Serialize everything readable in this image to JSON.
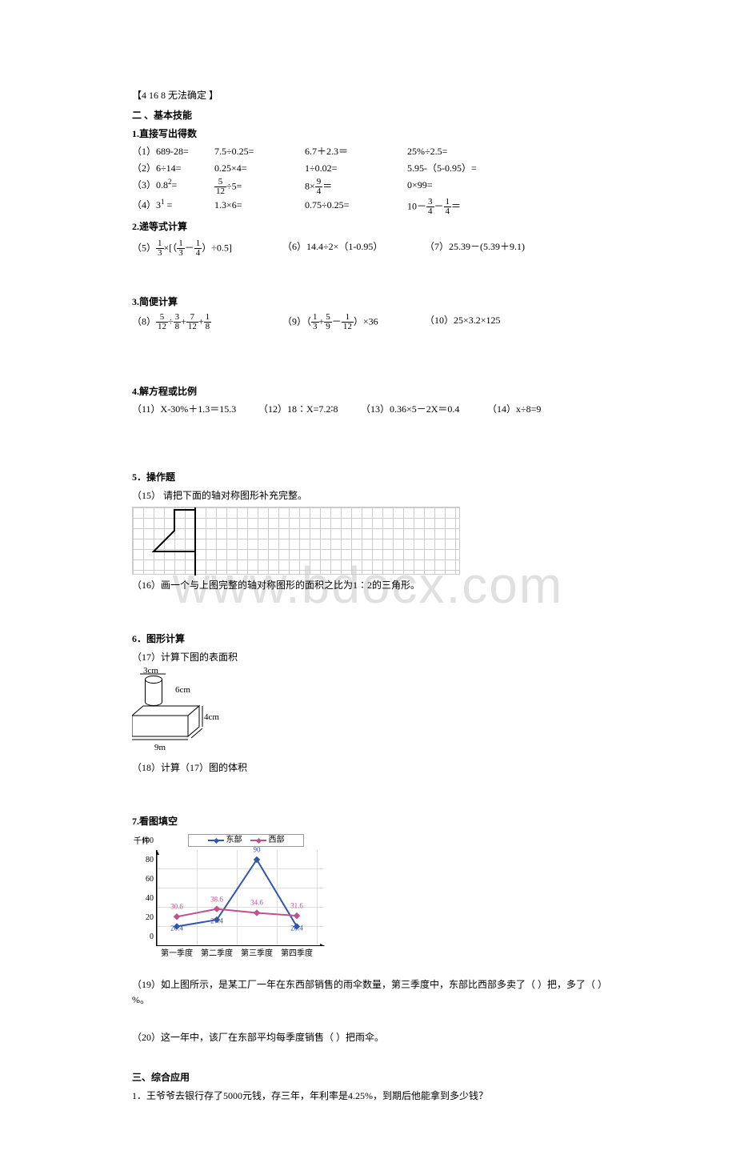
{
  "bracket": "【4    16    8    无法确定 】",
  "s2_title": "二 、基本技能",
  "q1_title": "1.直接写出得数",
  "q1": {
    "r1": [
      "（1）689-28=",
      "7.5÷0.25=",
      "6.7＋2.3＝",
      "25%÷2.5="
    ],
    "r2": [
      "（2）6÷14=",
      "0.25×4=",
      "1÷0.02=",
      "5.95-（5-0.95）="
    ],
    "r3a": "（3）0.8²=",
    "r3b_pre": "",
    "r3b_num": "5",
    "r3b_den": "12",
    "r3b_post": "÷5=",
    "r3c_pre": "8×",
    "r3c_num": "9",
    "r3c_den": "4",
    "r3c_post": "＝",
    "r3d": "0×99=",
    "r4a": "（4）3¹ =",
    "r4b": "1.3×6=",
    "r4c": "0.75÷0.25=",
    "r4d_pre": "10－",
    "r4d_n1": "3",
    "r4d_d1": "4",
    "r4d_mid": "－",
    "r4d_n2": "1",
    "r4d_d2": "4",
    "r4d_post": "＝"
  },
  "q2_title": "2.递等式计算",
  "q2": {
    "a_label": "（5）",
    "a_f1n": "1",
    "a_f1d": "3",
    "a_mid1": "×[（",
    "a_f2n": "1",
    "a_f2d": "3",
    "a_mid2": "－",
    "a_f3n": "1",
    "a_f3d": "4",
    "a_post": "）÷0.5]",
    "b": "（6）14.4÷2×（1-0.95）",
    "c": "（7）25.39－(5.39＋9.1)"
  },
  "q3_title": "3.简便计算",
  "q3": {
    "a_label": "（8）",
    "a_f1n": "5",
    "a_f1d": "12",
    "a_op1": "÷",
    "a_f2n": "3",
    "a_f2d": "8",
    "a_op2": "+",
    "a_f3n": "7",
    "a_f3d": "12",
    "a_op3": "+",
    "a_f4n": "1",
    "a_f4d": "8",
    "b_label": "（9）（",
    "b_f1n": "1",
    "b_f1d": "3",
    "b_op1": "+",
    "b_f2n": "5",
    "b_f2d": "9",
    "b_op2": "－",
    "b_f3n": "1",
    "b_f3d": "12",
    "b_post": "）×36",
    "c": "（10）25×3.2×125"
  },
  "q4_title": "4.解方程或比例",
  "q4": {
    "a": "（11）X-30%＋1.3＝15.3",
    "b": "（12）18∶X=7.2∶8",
    "c": "（13）0.36×5－2X＝0.4",
    "d": "（14）x÷8=9"
  },
  "q5_title": "5．操作题",
  "q5_15": "（15） 请把下面的轴对称图形补充完整。",
  "q5_16": "（16）画一个与上图完整的轴对称图形的面积之比为1∶2的三角形。",
  "q6_title": "6．图形计算",
  "q6_17": "（17）计算下图的表面积",
  "q6_dims": {
    "d1": "3cm",
    "d2": "6cm",
    "d3": "4cm",
    "d4": "9m"
  },
  "q6_18": "（18）计算（17）图的体积",
  "q7_title": "7.看图填空",
  "chart": {
    "ytitle": "千件",
    "legend": {
      "east": "东部",
      "west": "西部"
    },
    "east_color": "#3355aa",
    "west_color": "#c05090",
    "y_ticks": [
      "0",
      "20",
      "40",
      "60",
      "80",
      "100"
    ],
    "x_ticks": [
      "第一季度",
      "第二季度",
      "第三季度",
      "第四季度"
    ],
    "east_vals": [
      20.4,
      27.4,
      90,
      20.4
    ],
    "west_vals": [
      30.6,
      38.6,
      34.6,
      31.6
    ],
    "labels": {
      "e1": "20.4",
      "e2": "27.4",
      "e3": "90",
      "e4": "20.4",
      "w1": "30.6",
      "w2": "38.6",
      "w3": "34.6",
      "w4": "31.6"
    }
  },
  "q7_19": "（19）如上图所示，是某工厂一年在东西部销售的雨伞数量，第三季度中，东部比西部多卖了（    ）把，多了（    ）%。",
  "q7_20": "（20）这一年中，该厂在东部平均每季度销售（     ）把雨伞。",
  "s3_title": "三、综合应用",
  "s3_1": "1．王爷爷去银行存了5000元钱，存三年，年利率是4.25%，到期后他能拿到多少钱？"
}
